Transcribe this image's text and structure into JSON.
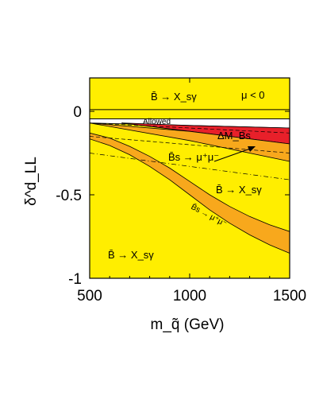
{
  "chart_data": {
    "type": "area",
    "title": "",
    "xlabel": "m_q̃ (GeV)",
    "ylabel": "δ^d_LL",
    "xlim": [
      500,
      1500
    ],
    "ylim": [
      -1,
      0.2
    ],
    "x_ticks": [
      500,
      1000,
      1500
    ],
    "y_ticks": [
      0,
      -0.5,
      -1
    ],
    "x_tick_labels": [
      "500",
      "1000",
      "1500"
    ],
    "y_tick_labels": [
      "0",
      "-0.5",
      "-1"
    ],
    "grid": false,
    "legend": "none",
    "colors": {
      "excluded_bsgamma": "#ffee00",
      "allowed": "#ffffff",
      "delta_mbs": "#e8202a",
      "bs_mumu": "#f8a81c",
      "outline": "#000000"
    },
    "series": [
      {
        "name": "Allowed",
        "x": [
          500,
          1000,
          1500
        ],
        "y_upper": [
          -0.045,
          -0.045,
          -0.045
        ],
        "y_lower": [
          -0.07,
          -0.085,
          -0.1
        ]
      },
      {
        "name": "ΔM_Bs",
        "x": [
          660,
          1000,
          1500
        ],
        "y_upper": [
          -0.07,
          -0.085,
          -0.1
        ],
        "y_lower": [
          -0.07,
          -0.12,
          -0.195
        ]
      },
      {
        "name": "B̄s → μ⁺μ⁻ (upper band)",
        "x": [
          500,
          1000,
          1500
        ],
        "y_upper": [
          -0.07,
          -0.12,
          -0.195
        ],
        "y_lower": [
          -0.07,
          -0.175,
          -0.3
        ]
      },
      {
        "name": "B̄s → μ⁺μ⁻ (lower band)",
        "x": [
          500,
          600,
          700,
          800,
          900,
          1000,
          1100,
          1200,
          1300,
          1400,
          1500
        ],
        "y_upper": [
          -0.13,
          -0.16,
          -0.21,
          -0.27,
          -0.34,
          -0.42,
          -0.5,
          -0.57,
          -0.63,
          -0.68,
          -0.72
        ],
        "y_lower": [
          -0.165,
          -0.205,
          -0.26,
          -0.33,
          -0.41,
          -0.5,
          -0.59,
          -0.67,
          -0.74,
          -0.8,
          -0.85
        ]
      }
    ],
    "dashed_curves": [
      {
        "x": [
          500,
          1500
        ],
        "y": [
          -0.07,
          -0.13
        ]
      },
      {
        "x": [
          500,
          1500
        ],
        "y": [
          -0.15,
          -0.25
        ]
      },
      {
        "x": [
          500,
          1500
        ],
        "y": [
          -0.25,
          -0.41
        ]
      },
      {
        "x": [
          500,
          1500
        ],
        "y": [
          0.2,
          0.2
        ]
      }
    ],
    "hlines": [
      0.01,
      -0.045
    ],
    "annotations": {
      "bsgamma_top": "B̄ → X_sγ",
      "mu_sign": "μ < 0",
      "allowed": "Allowed",
      "delta_mbs": "ΔM_Bs",
      "bsmumu_upper": "B̄s → μ⁺μ⁻",
      "bsgamma_mid": "B̄ → X_sγ",
      "bsmumu_lower": "B̄s → μ⁺μ⁻",
      "bsgamma_bottom": "B̄ → X_sγ"
    }
  }
}
